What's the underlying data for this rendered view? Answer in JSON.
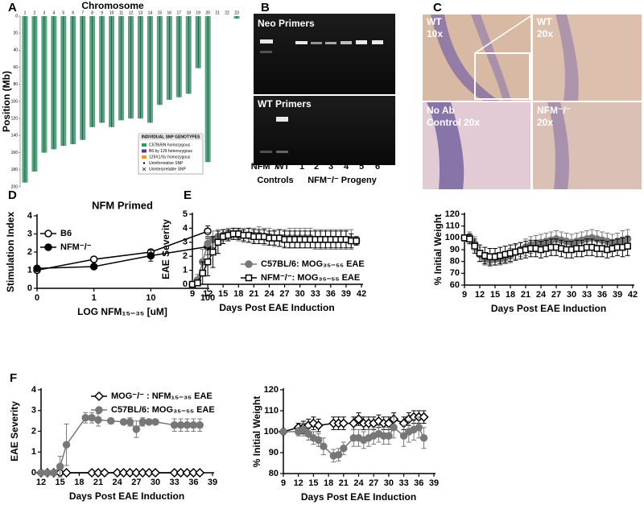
{
  "panels": [
    "A",
    "B",
    "C",
    "D",
    "E",
    "F"
  ],
  "gel": {
    "top_label": "Neo Primers",
    "bottom_label": "WT Primers",
    "lanes": [
      "NFM⁻/⁻",
      "WT",
      "1",
      "2",
      "3",
      "4",
      "5",
      "6"
    ],
    "groups": [
      "Controls",
      "NFM⁻/⁻ Progeny"
    ]
  },
  "histology": [
    {
      "lines": [
        "WT",
        "10x"
      ]
    },
    {
      "lines": [
        "WT",
        "20x"
      ]
    },
    {
      "lines": [
        "No Ab",
        "Control 20x"
      ]
    },
    {
      "lines": [
        "NFM⁻/⁻",
        "20x"
      ]
    }
  ],
  "chart_data": [
    {
      "type": "chromosome",
      "title": "Chromosome",
      "ylabel": "Position (Mb)",
      "categories": [
        "1",
        "2",
        "3",
        "4",
        "5",
        "6",
        "7",
        "8",
        "9",
        "10",
        "11",
        "12",
        "13",
        "14",
        "15",
        "16",
        "17",
        "18",
        "19",
        "20",
        "21",
        "22",
        "23"
      ],
      "values": [
        195,
        182,
        160,
        156,
        152,
        150,
        145,
        130,
        125,
        130,
        122,
        120,
        120,
        125,
        104,
        98,
        95,
        91,
        61,
        171,
        0,
        0,
        3
      ],
      "color": "#2f9a68",
      "ylim": [
        0,
        200
      ],
      "yticks": [
        0,
        20,
        40,
        60,
        80,
        100,
        120,
        140,
        160,
        180,
        200
      ],
      "legend_title": "INDIVIDUAL SNP GENOTYPES",
      "legend": [
        "C57Bl/6N homozygous",
        "B6 by 129 heterozygous",
        "129X1/Sv homozygous",
        "Uninformative SNP",
        "Uninterpretable SNP"
      ],
      "legend_colors": [
        "#2f9a68",
        "#6a2c91",
        "#f39c12",
        "#000000",
        "#000000"
      ]
    },
    {
      "type": "line",
      "title": "NFM Primed",
      "xlabel": "LOG NFM₁₅₋₃₅ [uM]",
      "ylabel": "Stimulation Index",
      "categories": [
        "0",
        "1",
        "10",
        "100"
      ],
      "ylim": [
        0,
        4
      ],
      "yticks": [
        0,
        1,
        2,
        3,
        4
      ],
      "legend": "upper left",
      "series": [
        {
          "name": "B6",
          "color": "#000000",
          "marker": "circle",
          "filled": false,
          "values": [
            1.0,
            1.6,
            2.0,
            3.15
          ],
          "errors": [
            0.05,
            0.05,
            0.15,
            0.3
          ]
        },
        {
          "name": "NFM⁻/⁻",
          "color": "#000000",
          "marker": "circle",
          "filled": true,
          "values": [
            1.1,
            1.2,
            1.8,
            2.3
          ],
          "errors": [
            0.1,
            0.05,
            0.3,
            0.45
          ]
        }
      ]
    },
    {
      "type": "line",
      "xlabel": "Days Post EAE Induction",
      "ylabel": "EAE Severity",
      "xlim": [
        9,
        42
      ],
      "xticks": [
        9,
        12,
        15,
        18,
        21,
        24,
        27,
        30,
        33,
        36,
        39,
        42
      ],
      "ylim": [
        0,
        5
      ],
      "yticks": [
        0,
        1,
        2,
        3,
        4,
        5
      ],
      "legend": "lower right",
      "series": [
        {
          "name": "C57BL/6: MOG₃₅₋₅₅ EAE",
          "color": "#777777",
          "marker": "circle",
          "filled": true,
          "x": [
            9,
            10,
            11,
            12,
            13,
            14,
            15,
            16,
            17,
            18,
            19,
            20,
            21,
            22,
            23,
            24,
            25,
            26,
            27,
            28,
            29,
            30,
            31,
            32,
            33,
            34,
            35,
            36,
            37,
            38,
            39,
            40,
            41
          ],
          "values": [
            0,
            0.3,
            1.6,
            2.9,
            3.2,
            3.4,
            3.5,
            3.6,
            3.6,
            3.5,
            3.5,
            3.5,
            3.5,
            3.5,
            3.4,
            3.4,
            3.3,
            3.3,
            3.3,
            3.3,
            3.3,
            3.3,
            3.3,
            3.3,
            3.2,
            3.2,
            3.2,
            3.2,
            3.2,
            3.2,
            3.2,
            3.2,
            3.1
          ],
          "errors": [
            0,
            0.4,
            0.9,
            0.8,
            0.6,
            0.5,
            0.4,
            0.4,
            0.4,
            0.4,
            0.5,
            0.5,
            0.5,
            0.6,
            0.6,
            0.6,
            0.6,
            0.6,
            0.6,
            0.7,
            0.7,
            0.7,
            0.7,
            0.7,
            0.7,
            0.7,
            0.7,
            0.7,
            0.7,
            0.7,
            0.7,
            0.7,
            0.3
          ]
        },
        {
          "name": "NFM⁻/⁻: MOG₃₅₋₅₅ EAE",
          "color": "#000000",
          "marker": "square",
          "filled": false,
          "x": [
            9,
            10,
            11,
            12,
            13,
            14,
            15,
            16,
            17,
            18,
            19,
            20,
            21,
            22,
            23,
            24,
            25,
            26,
            27,
            28,
            29,
            30,
            31,
            32,
            33,
            34,
            35,
            36,
            37,
            38,
            39,
            40,
            41
          ],
          "values": [
            0,
            0.1,
            0.8,
            1.6,
            2.3,
            3.0,
            3.4,
            3.5,
            3.6,
            3.6,
            3.5,
            3.5,
            3.4,
            3.4,
            3.4,
            3.3,
            3.3,
            3.3,
            3.2,
            3.2,
            3.2,
            3.2,
            3.2,
            3.2,
            3.2,
            3.2,
            3.2,
            3.2,
            3.2,
            3.2,
            3.2,
            3.1,
            3.1
          ],
          "errors": [
            0,
            0.2,
            0.8,
            1.0,
            1.1,
            0.8,
            0.5,
            0.4,
            0.4,
            0.4,
            0.4,
            0.5,
            0.5,
            0.5,
            0.5,
            0.5,
            0.5,
            0.6,
            0.6,
            0.6,
            0.6,
            0.6,
            0.6,
            0.6,
            0.6,
            0.6,
            0.6,
            0.6,
            0.6,
            0.6,
            0.6,
            0.5,
            0.3
          ]
        }
      ]
    },
    {
      "type": "line",
      "xlabel": "Days Post EAE Induction",
      "ylabel": "% Initial Weight",
      "xlim": [
        9,
        42
      ],
      "xticks": [
        9,
        12,
        15,
        18,
        21,
        24,
        27,
        30,
        33,
        36,
        39,
        42
      ],
      "ylim": [
        60,
        120
      ],
      "yticks": [
        60,
        70,
        80,
        90,
        100,
        110,
        120
      ],
      "series": [
        {
          "color": "#777777",
          "marker": "circle",
          "filled": true,
          "x": [
            9,
            10,
            11,
            12,
            13,
            14,
            15,
            16,
            17,
            18,
            19,
            20,
            21,
            22,
            23,
            24,
            25,
            26,
            27,
            28,
            29,
            30,
            31,
            32,
            33,
            34,
            35,
            36,
            37,
            38,
            39,
            40,
            41
          ],
          "values": [
            100,
            101,
            95,
            86,
            82,
            81,
            82,
            82,
            83,
            85,
            88,
            90,
            92,
            94,
            95,
            96,
            97,
            98,
            99,
            98,
            97,
            96,
            97,
            98,
            99,
            100,
            99,
            98,
            97,
            96,
            97,
            98,
            99
          ],
          "errors": [
            2,
            4,
            6,
            6,
            5,
            5,
            5,
            5,
            5,
            6,
            6,
            6,
            7,
            7,
            7,
            7,
            7,
            7,
            7,
            7,
            7,
            7,
            7,
            7,
            7,
            7,
            7,
            7,
            7,
            7,
            7,
            8,
            8
          ]
        },
        {
          "color": "#000000",
          "marker": "square",
          "filled": false,
          "x": [
            9,
            10,
            11,
            12,
            13,
            14,
            15,
            16,
            17,
            18,
            19,
            20,
            21,
            22,
            23,
            24,
            25,
            26,
            27,
            28,
            29,
            30,
            31,
            32,
            33,
            34,
            35,
            36,
            37,
            38,
            39,
            40,
            41
          ],
          "values": [
            100,
            99,
            93,
            87,
            85,
            84,
            84,
            85,
            86,
            87,
            88,
            89,
            90,
            91,
            91,
            90,
            91,
            92,
            92,
            91,
            90,
            90,
            91,
            91,
            92,
            92,
            91,
            91,
            90,
            91,
            92,
            92,
            93
          ],
          "errors": [
            2,
            4,
            6,
            7,
            7,
            7,
            7,
            7,
            7,
            7,
            7,
            7,
            7,
            7,
            7,
            7,
            7,
            7,
            7,
            7,
            7,
            7,
            7,
            7,
            7,
            7,
            7,
            7,
            7,
            7,
            7,
            8,
            8
          ]
        }
      ]
    },
    {
      "type": "line",
      "xlabel": "Days Post EAE Induction",
      "ylabel": "EAE Severity",
      "xlim": [
        12,
        39
      ],
      "xticks": [
        12,
        15,
        18,
        21,
        24,
        27,
        30,
        33,
        36,
        39
      ],
      "ylim": [
        0,
        4
      ],
      "yticks": [
        0,
        1,
        2,
        3,
        4
      ],
      "legend": "upper right",
      "series": [
        {
          "name": "MOG⁻/⁻ : NFM₁₅₋₃₅ EAE",
          "color": "#000000",
          "marker": "diamond",
          "filled": false,
          "x": [
            12,
            13,
            14,
            15,
            16,
            20,
            21,
            22,
            24,
            25,
            26,
            27,
            28,
            29,
            30,
            33,
            34,
            35,
            36,
            37
          ],
          "values": [
            0,
            0,
            0,
            0,
            0,
            0,
            0,
            0,
            0,
            0,
            0,
            0,
            0,
            0,
            0,
            0,
            0,
            0,
            0,
            0
          ]
        },
        {
          "name": "C57BL/6: MOG₃₅₋₅₅ EAE",
          "color": "#777777",
          "marker": "circle",
          "filled": true,
          "x": [
            12,
            13,
            14,
            15,
            16,
            19,
            20,
            21,
            23,
            25,
            26,
            27,
            28,
            29,
            30,
            33,
            34,
            35,
            36,
            37
          ],
          "values": [
            0,
            0,
            0,
            0.3,
            1.35,
            2.65,
            2.65,
            2.55,
            2.5,
            2.45,
            2.45,
            2.1,
            2.45,
            2.45,
            2.45,
            2.3,
            2.3,
            2.3,
            2.3,
            2.3
          ],
          "errors": [
            0,
            0,
            0,
            0.5,
            1.0,
            0.25,
            0.25,
            0.3,
            0.1,
            0.1,
            0.2,
            0.4,
            0.2,
            0.1,
            0.1,
            0.3,
            0.3,
            0.3,
            0.3,
            0.3
          ]
        }
      ]
    },
    {
      "type": "line",
      "xlabel": "Days Post EAE Induction",
      "ylabel": "% Initial Weight",
      "xlim": [
        9,
        39
      ],
      "xticks": [
        9,
        12,
        15,
        18,
        21,
        24,
        27,
        30,
        33,
        36,
        39
      ],
      "ylim": [
        80,
        120
      ],
      "yticks": [
        80,
        90,
        100,
        110,
        120
      ],
      "series": [
        {
          "color": "#000000",
          "marker": "diamond",
          "filled": false,
          "x": [
            9,
            12,
            13,
            14,
            15,
            16,
            19,
            20,
            21,
            23,
            24,
            25,
            26,
            27,
            28,
            29,
            30,
            31,
            33,
            34,
            35,
            36,
            37
          ],
          "values": [
            100,
            102,
            102,
            103,
            104,
            103,
            104,
            104,
            104,
            104,
            106,
            104,
            104,
            104,
            105,
            104,
            104,
            106,
            104,
            106,
            107,
            107,
            107
          ],
          "errors": [
            0,
            2,
            3,
            3,
            3,
            3,
            3,
            3,
            3,
            3,
            3,
            3,
            3,
            3,
            3,
            3,
            3,
            3,
            3,
            3,
            3,
            3,
            3
          ]
        },
        {
          "color": "#777777",
          "marker": "circle",
          "filled": true,
          "x": [
            9,
            12,
            13,
            14,
            15,
            16,
            17,
            19,
            20,
            21,
            23,
            24,
            25,
            26,
            27,
            28,
            29,
            30,
            31,
            33,
            34,
            35,
            36,
            37
          ],
          "values": [
            100,
            100,
            101,
            99,
            97,
            96,
            93,
            88.5,
            89,
            92,
            97,
            97,
            96,
            97,
            98,
            99,
            98,
            98,
            102,
            98,
            100,
            101,
            102,
            97
          ],
          "errors": [
            0,
            2,
            3,
            3,
            3,
            3,
            4,
            3,
            3,
            3,
            4,
            4,
            4,
            4,
            4,
            4,
            4,
            4,
            5,
            5,
            5,
            5,
            5,
            5
          ]
        }
      ]
    }
  ]
}
